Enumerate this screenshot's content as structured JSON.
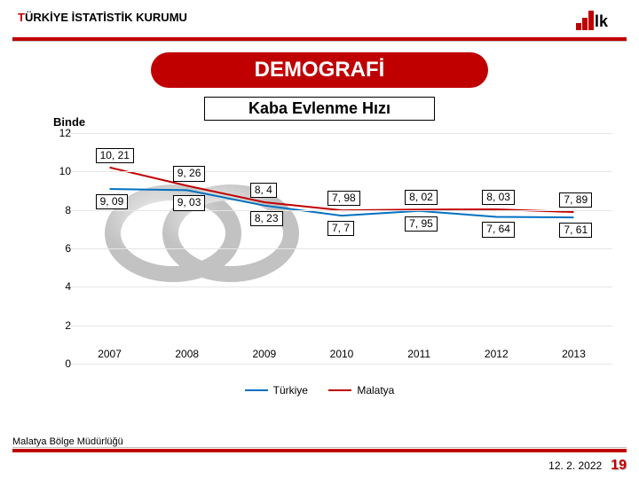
{
  "header": {
    "org_red": "T",
    "org_rest": "ÜRKİYE İSTATİSTİK KURUMU"
  },
  "title": "DEMOGRAFİ",
  "subtitle": "Kaba Evlenme Hızı",
  "y_axis_label": "Binde",
  "colors": {
    "accent": "#c00000",
    "series1": "#0070c0",
    "series2": "#c00000",
    "grid": "#e6e6e6",
    "bg": "#ffffff",
    "text": "#000000"
  },
  "chart": {
    "type": "line",
    "ylim": [
      0,
      12
    ],
    "ytick_step": 2,
    "categories": [
      "2007",
      "2008",
      "2009",
      "2010",
      "2011",
      "2012",
      "2013"
    ],
    "series": [
      {
        "name": "Türkiye",
        "color": "#0070c0",
        "values": [
          9.09,
          9.03,
          8.23,
          7.7,
          7.95,
          7.64,
          7.61
        ],
        "labels": [
          "9, 09",
          "9, 03",
          "8, 23",
          "7, 7",
          "7, 95",
          "7, 64",
          "7, 61"
        ]
      },
      {
        "name": "Malatya",
        "color": "#c00000",
        "values": [
          10.21,
          9.26,
          8.4,
          7.98,
          8.02,
          8.03,
          7.89
        ],
        "labels": [
          "10, 21",
          "9, 26",
          "8, 4",
          "7, 98",
          "8, 02",
          "8, 03",
          "7, 89"
        ]
      }
    ]
  },
  "footer": {
    "office": "Malatya Bölge Müdürlüğü",
    "date": "12. 2. 2022",
    "page": "19"
  }
}
